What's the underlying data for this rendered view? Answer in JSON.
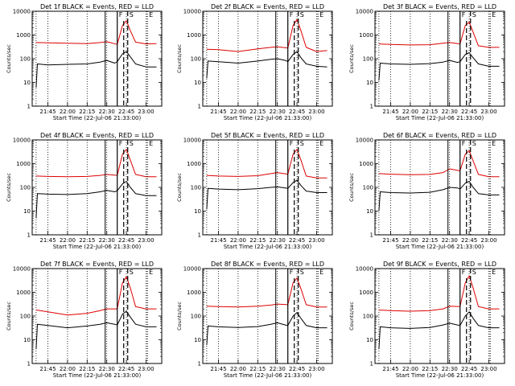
{
  "colors": {
    "events": "#000000",
    "lld": "#dd0000",
    "axes": "#000000"
  },
  "chart_data": [
    {
      "type": "line",
      "title": "Det 1f BLACK = Events, RED = LLD",
      "xlabel": "Start Time (22-Jul-06 21:33:00)",
      "ylabel": "Counts/sec",
      "x_ticks": [
        "21:45",
        "22:00",
        "22:15",
        "22:30",
        "22:45",
        "23:00"
      ],
      "y_ticks": [
        "1",
        "10",
        "100",
        "1000",
        "10000"
      ],
      "xlim": [
        "21:33",
        "23:12"
      ],
      "ylim": [
        1,
        10000
      ],
      "yscale": "log",
      "markers": [
        {
          "label": "F",
          "time": "22:38"
        },
        {
          "label": "S",
          "time": "22:46"
        },
        {
          "label": "E",
          "time": "23:01"
        }
      ],
      "series": [
        {
          "name": "LLD",
          "x": [
            "21:36",
            "21:45",
            "22:00",
            "22:15",
            "22:25",
            "22:30",
            "22:38",
            "22:42",
            "22:45",
            "22:48",
            "22:52",
            "23:00",
            "23:08"
          ],
          "y": [
            480,
            470,
            450,
            430,
            480,
            520,
            400,
            2500,
            4000,
            1500,
            500,
            420,
            430
          ]
        },
        {
          "name": "Events",
          "x": [
            "21:36",
            "21:37",
            "21:45",
            "22:00",
            "22:15",
            "22:25",
            "22:30",
            "22:36",
            "22:38",
            "22:42",
            "22:45",
            "22:48",
            "22:52",
            "23:00",
            "23:08"
          ],
          "y": [
            6,
            60,
            55,
            58,
            60,
            72,
            85,
            65,
            75,
            160,
            200,
            120,
            60,
            45,
            45
          ]
        }
      ]
    },
    {
      "type": "line",
      "title": "Det 2f BLACK = Events, RED = LLD",
      "xlabel": "Start Time (22-Jul-06 21:33:00)",
      "ylabel": "Counts/sec",
      "x_ticks": [
        "21:45",
        "22:00",
        "22:15",
        "22:30",
        "22:45",
        "23:00"
      ],
      "y_ticks": [
        "1",
        "10",
        "100",
        "1000",
        "10000"
      ],
      "xlim": [
        "21:33",
        "23:12"
      ],
      "ylim": [
        1,
        10000
      ],
      "yscale": "log",
      "markers": [
        {
          "label": "F",
          "time": "22:38"
        },
        {
          "label": "S",
          "time": "22:46"
        },
        {
          "label": "E",
          "time": "23:01"
        }
      ],
      "series": [
        {
          "name": "LLD",
          "x": [
            "21:36",
            "21:45",
            "22:00",
            "22:15",
            "22:25",
            "22:30",
            "22:38",
            "22:42",
            "22:45",
            "22:48",
            "22:52",
            "23:00",
            "23:08"
          ],
          "y": [
            250,
            240,
            200,
            260,
            300,
            320,
            280,
            2500,
            4500,
            1500,
            300,
            200,
            220
          ]
        },
        {
          "name": "Events",
          "x": [
            "21:36",
            "21:37",
            "21:45",
            "22:00",
            "22:15",
            "22:25",
            "22:30",
            "22:36",
            "22:38",
            "22:42",
            "22:45",
            "22:48",
            "22:52",
            "23:00",
            "23:08"
          ],
          "y": [
            15,
            80,
            75,
            65,
            80,
            95,
            100,
            85,
            75,
            150,
            200,
            110,
            60,
            48,
            45
          ]
        }
      ]
    },
    {
      "type": "line",
      "title": "Det 3f BLACK = Events, RED = LLD",
      "xlabel": "Start Time (22-Jul-06 21:33:00)",
      "ylabel": "Counts/sec",
      "x_ticks": [
        "21:45",
        "22:00",
        "22:15",
        "22:30",
        "22:45",
        "23:00"
      ],
      "y_ticks": [
        "1",
        "10",
        "100",
        "1000",
        "10000"
      ],
      "xlim": [
        "21:33",
        "23:12"
      ],
      "ylim": [
        1,
        10000
      ],
      "yscale": "log",
      "markers": [
        {
          "label": "F",
          "time": "22:38"
        },
        {
          "label": "S",
          "time": "22:46"
        },
        {
          "label": "E",
          "time": "23:01"
        }
      ],
      "series": [
        {
          "name": "LLD",
          "x": [
            "21:36",
            "21:45",
            "22:00",
            "22:15",
            "22:25",
            "22:30",
            "22:38",
            "22:42",
            "22:45",
            "22:48",
            "22:52",
            "23:00",
            "23:08"
          ],
          "y": [
            420,
            400,
            380,
            390,
            450,
            480,
            420,
            2500,
            3500,
            1300,
            350,
            300,
            300
          ]
        },
        {
          "name": "Events",
          "x": [
            "21:36",
            "21:37",
            "21:45",
            "22:00",
            "22:15",
            "22:25",
            "22:30",
            "22:36",
            "22:38",
            "22:42",
            "22:45",
            "22:48",
            "22:52",
            "23:00",
            "23:08"
          ],
          "y": [
            12,
            65,
            60,
            58,
            62,
            72,
            85,
            70,
            75,
            150,
            180,
            110,
            60,
            48,
            48
          ]
        }
      ]
    },
    {
      "type": "line",
      "title": "Det 4f BLACK = Events, RED = LLD",
      "xlabel": "Start Time (22-Jul-06 21:33:00)",
      "ylabel": "Counts/sec",
      "x_ticks": [
        "21:45",
        "22:00",
        "22:15",
        "22:30",
        "22:45",
        "23:00"
      ],
      "y_ticks": [
        "1",
        "10",
        "100",
        "1000",
        "10000"
      ],
      "xlim": [
        "21:33",
        "23:12"
      ],
      "ylim": [
        1,
        10000
      ],
      "yscale": "log",
      "markers": [
        {
          "label": "F",
          "time": "22:38"
        },
        {
          "label": "S",
          "time": "22:46"
        },
        {
          "label": "E",
          "time": "23:01"
        }
      ],
      "series": [
        {
          "name": "LLD",
          "x": [
            "21:36",
            "21:45",
            "22:00",
            "22:15",
            "22:25",
            "22:30",
            "22:38",
            "22:42",
            "22:45",
            "22:48",
            "22:52",
            "23:00",
            "23:08"
          ],
          "y": [
            300,
            290,
            280,
            290,
            320,
            350,
            320,
            2500,
            4000,
            1400,
            350,
            280,
            280
          ]
        },
        {
          "name": "Events",
          "x": [
            "21:36",
            "21:37",
            "21:45",
            "22:00",
            "22:15",
            "22:25",
            "22:30",
            "22:36",
            "22:38",
            "22:42",
            "22:45",
            "22:48",
            "22:52",
            "23:00",
            "23:08"
          ],
          "y": [
            5,
            55,
            52,
            50,
            55,
            65,
            75,
            65,
            72,
            140,
            180,
            100,
            55,
            45,
            45
          ]
        }
      ]
    },
    {
      "type": "line",
      "title": "Det 5f BLACK = Events, RED = LLD",
      "xlabel": "Start Time (22-Jul-06 21:33:00)",
      "ylabel": "Counts/sec",
      "x_ticks": [
        "21:45",
        "22:00",
        "22:15",
        "22:30",
        "22:45",
        "23:00"
      ],
      "y_ticks": [
        "1",
        "10",
        "100",
        "1000",
        "10000"
      ],
      "xlim": [
        "21:33",
        "23:12"
      ],
      "ylim": [
        1,
        10000
      ],
      "yscale": "log",
      "markers": [
        {
          "label": "F",
          "time": "22:38"
        },
        {
          "label": "S",
          "time": "22:46"
        },
        {
          "label": "E",
          "time": "23:01"
        }
      ],
      "series": [
        {
          "name": "LLD",
          "x": [
            "21:36",
            "21:45",
            "22:00",
            "22:15",
            "22:25",
            "22:30",
            "22:38",
            "22:42",
            "22:45",
            "22:48",
            "22:52",
            "23:00",
            "23:08"
          ],
          "y": [
            320,
            300,
            290,
            310,
            380,
            420,
            360,
            2500,
            4000,
            1400,
            300,
            250,
            250
          ]
        },
        {
          "name": "Events",
          "x": [
            "21:36",
            "21:37",
            "21:45",
            "22:00",
            "22:15",
            "22:25",
            "22:30",
            "22:36",
            "22:38",
            "22:42",
            "22:45",
            "22:48",
            "22:52",
            "23:00",
            "23:08"
          ],
          "y": [
            12,
            90,
            85,
            80,
            88,
            100,
            105,
            95,
            90,
            160,
            200,
            120,
            70,
            60,
            60
          ]
        }
      ]
    },
    {
      "type": "line",
      "title": "Det 6f BLACK = Events, RED = LLD",
      "xlabel": "Start Time (22-Jul-06 21:33:00)",
      "ylabel": "Counts/sec",
      "x_ticks": [
        "21:45",
        "22:00",
        "22:15",
        "22:30",
        "22:45",
        "23:00"
      ],
      "y_ticks": [
        "1",
        "10",
        "100",
        "1000",
        "10000"
      ],
      "xlim": [
        "21:33",
        "23:12"
      ],
      "ylim": [
        1,
        10000
      ],
      "yscale": "log",
      "markers": [
        {
          "label": "F",
          "time": "22:38"
        },
        {
          "label": "S",
          "time": "22:46"
        },
        {
          "label": "E",
          "time": "23:01"
        }
      ],
      "series": [
        {
          "name": "LLD",
          "x": [
            "21:36",
            "21:45",
            "22:00",
            "22:15",
            "22:25",
            "22:30",
            "22:38",
            "22:42",
            "22:45",
            "22:48",
            "22:52",
            "23:00",
            "23:08"
          ],
          "y": [
            380,
            360,
            340,
            350,
            420,
            600,
            500,
            2500,
            3500,
            1300,
            350,
            280,
            280
          ]
        },
        {
          "name": "Events",
          "x": [
            "21:36",
            "21:37",
            "21:45",
            "22:00",
            "22:15",
            "22:25",
            "22:30",
            "22:36",
            "22:38",
            "22:42",
            "22:45",
            "22:48",
            "22:52",
            "23:00",
            "23:08"
          ],
          "y": [
            10,
            65,
            60,
            58,
            62,
            80,
            100,
            95,
            85,
            150,
            180,
            100,
            55,
            48,
            48
          ]
        }
      ]
    },
    {
      "type": "line",
      "title": "Det 7f BLACK = Events, RED = LLD",
      "xlabel": "Start Time (22-Jul-06 21:33:00)",
      "ylabel": "Counts/sec",
      "x_ticks": [
        "21:45",
        "22:00",
        "22:15",
        "22:30",
        "22:45",
        "23:00"
      ],
      "y_ticks": [
        "1",
        "10",
        "100",
        "1000",
        "10000"
      ],
      "xlim": [
        "21:33",
        "23:12"
      ],
      "ylim": [
        1,
        10000
      ],
      "yscale": "log",
      "markers": [
        {
          "label": "F",
          "time": "22:38"
        },
        {
          "label": "S",
          "time": "22:46"
        },
        {
          "label": "E",
          "time": "23:01"
        }
      ],
      "series": [
        {
          "name": "LLD",
          "x": [
            "21:36",
            "21:45",
            "22:00",
            "22:15",
            "22:25",
            "22:30",
            "22:38",
            "22:42",
            "22:45",
            "22:48",
            "22:52",
            "23:00",
            "23:08"
          ],
          "y": [
            180,
            150,
            110,
            130,
            170,
            200,
            200,
            2500,
            4500,
            1500,
            250,
            200,
            200
          ]
        },
        {
          "name": "Events",
          "x": [
            "21:36",
            "21:37",
            "21:45",
            "22:00",
            "22:15",
            "22:25",
            "22:30",
            "22:36",
            "22:38",
            "22:42",
            "22:45",
            "22:48",
            "22:52",
            "23:00",
            "23:08"
          ],
          "y": [
            4,
            45,
            40,
            32,
            38,
            45,
            52,
            45,
            42,
            120,
            160,
            90,
            45,
            35,
            35
          ]
        }
      ]
    },
    {
      "type": "line",
      "title": "Det 8f BLACK = Events, RED = LLD",
      "xlabel": "Start Time (22-Jul-06 21:33:00)",
      "ylabel": "Counts/sec",
      "x_ticks": [
        "21:45",
        "22:00",
        "22:15",
        "22:30",
        "22:45",
        "23:00"
      ],
      "y_ticks": [
        "1",
        "10",
        "100",
        "1000",
        "10000"
      ],
      "xlim": [
        "21:33",
        "23:12"
      ],
      "ylim": [
        1,
        10000
      ],
      "yscale": "log",
      "markers": [
        {
          "label": "F",
          "time": "22:38"
        },
        {
          "label": "S",
          "time": "22:46"
        },
        {
          "label": "E",
          "time": "23:01"
        }
      ],
      "series": [
        {
          "name": "LLD",
          "x": [
            "21:36",
            "21:45",
            "22:00",
            "22:15",
            "22:25",
            "22:30",
            "22:38",
            "22:42",
            "22:45",
            "22:48",
            "22:52",
            "23:00",
            "23:08"
          ],
          "y": [
            260,
            250,
            240,
            260,
            290,
            320,
            300,
            2500,
            4000,
            1400,
            300,
            240,
            240
          ]
        },
        {
          "name": "Events",
          "x": [
            "21:36",
            "21:37",
            "21:45",
            "22:00",
            "22:15",
            "22:25",
            "22:30",
            "22:36",
            "22:38",
            "22:42",
            "22:45",
            "22:48",
            "22:52",
            "23:00",
            "23:08"
          ],
          "y": [
            6,
            38,
            35,
            33,
            36,
            45,
            52,
            42,
            40,
            100,
            140,
            80,
            40,
            32,
            32
          ]
        }
      ]
    },
    {
      "type": "line",
      "title": "Det 9f BLACK = Events, RED = LLD",
      "xlabel": "Start Time (22-Jul-06 21:33:00)",
      "ylabel": "Counts/sec",
      "x_ticks": [
        "21:45",
        "22:00",
        "22:15",
        "22:30",
        "22:45",
        "23:00"
      ],
      "y_ticks": [
        "1",
        "10",
        "100",
        "1000",
        "10000"
      ],
      "xlim": [
        "21:33",
        "23:12"
      ],
      "ylim": [
        1,
        10000
      ],
      "yscale": "log",
      "markers": [
        {
          "label": "F",
          "time": "22:38"
        },
        {
          "label": "S",
          "time": "22:46"
        },
        {
          "label": "E",
          "time": "23:01"
        }
      ],
      "series": [
        {
          "name": "LLD",
          "x": [
            "21:36",
            "21:45",
            "22:00",
            "22:15",
            "22:25",
            "22:30",
            "22:38",
            "22:42",
            "22:45",
            "22:48",
            "22:52",
            "23:00",
            "23:08"
          ],
          "y": [
            180,
            170,
            160,
            170,
            200,
            260,
            250,
            2500,
            5000,
            1500,
            250,
            200,
            200
          ]
        },
        {
          "name": "Events",
          "x": [
            "21:36",
            "21:37",
            "21:45",
            "22:00",
            "22:15",
            "22:25",
            "22:30",
            "22:36",
            "22:38",
            "22:42",
            "22:45",
            "22:48",
            "22:52",
            "23:00",
            "23:08"
          ],
          "y": [
            4,
            35,
            32,
            30,
            33,
            42,
            50,
            42,
            40,
            100,
            150,
            80,
            40,
            32,
            32
          ]
        }
      ]
    }
  ]
}
